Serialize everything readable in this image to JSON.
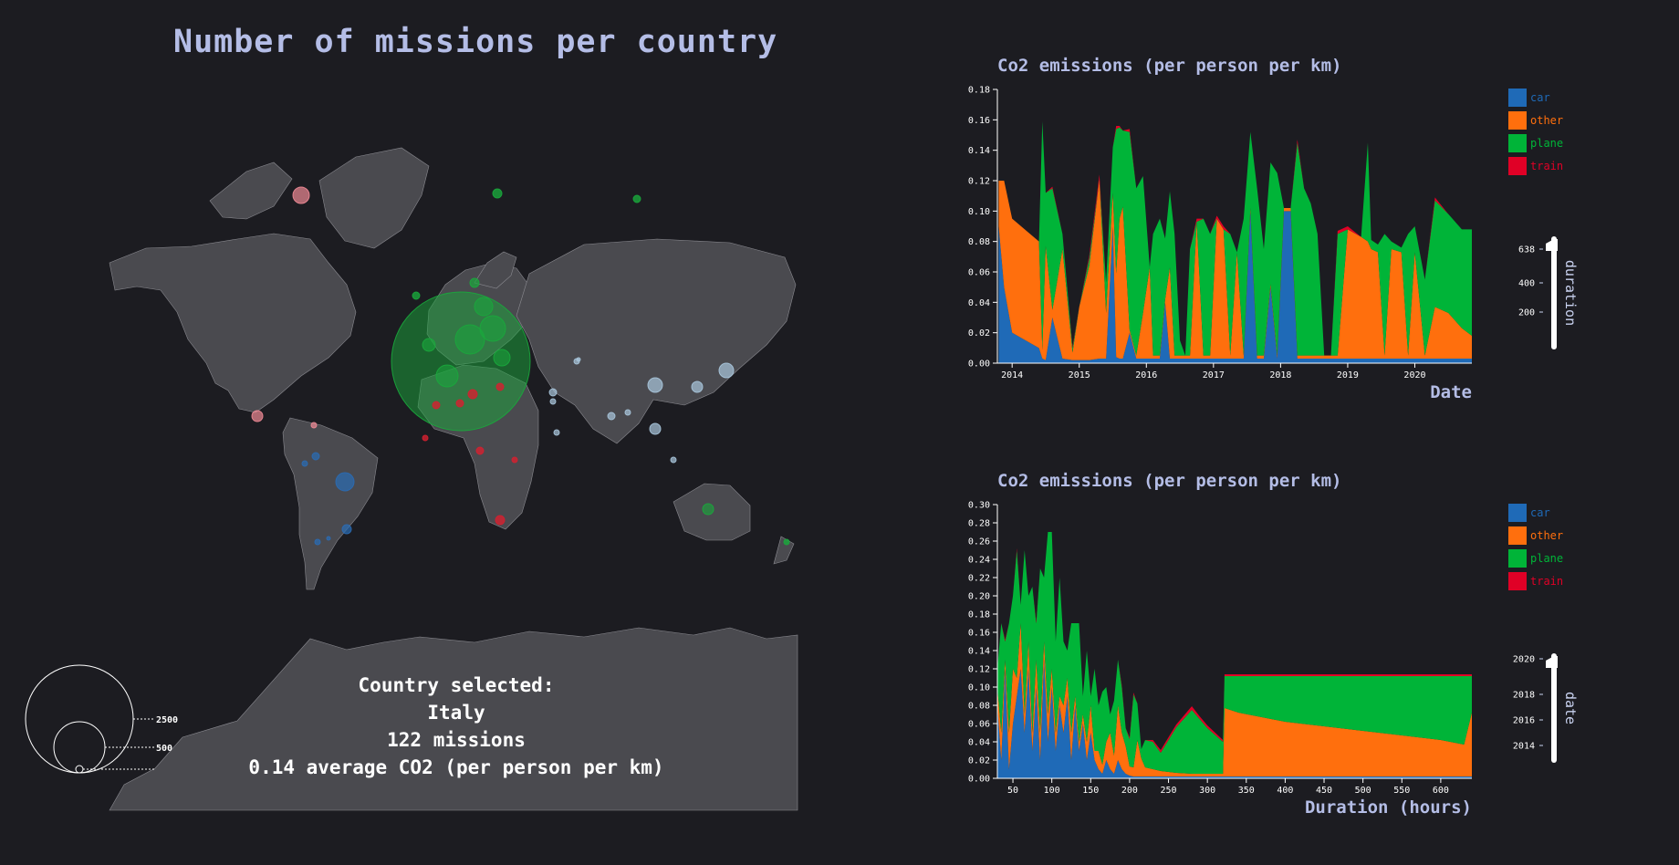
{
  "map": {
    "title": "Number of missions per country",
    "size_legend": [
      "2500",
      "500"
    ],
    "selection": {
      "line1": "Country selected:",
      "country": "Italy",
      "missions": "122 missions",
      "avg": "0.14 average CO2 (per person per km)"
    },
    "colors": {
      "land": "#4a4a4f",
      "border": "#8a8a90",
      "europe": "#1aa83c",
      "asia": "#a9c6dd",
      "africa": "#d42030",
      "americas_n": "#f08a96",
      "americas_s": "#2a6cb5"
    }
  },
  "legend_colors": {
    "car": "#1f6ab7",
    "other": "#ff6f0d",
    "plane": "#00b438",
    "train": "#e00026"
  },
  "chart_data": [
    {
      "type": "area",
      "stacked": true,
      "title": "Co2 emissions (per person per km)",
      "xlabel": "Date",
      "ylabel": "",
      "ylim": [
        0,
        0.18
      ],
      "yticks": [
        "0.00",
        "0.02",
        "0.04",
        "0.06",
        "0.08",
        "0.10",
        "0.12",
        "0.14",
        "0.16",
        "0.18"
      ],
      "xticks": [
        "2014",
        "2015",
        "2016",
        "2017",
        "2018",
        "2019",
        "2020"
      ],
      "xlim": [
        2013.78,
        2020.85
      ],
      "legend": [
        "car",
        "other",
        "plane",
        "train"
      ],
      "legend_position": "right",
      "slider": {
        "label": "duration",
        "ticks": [
          "638",
          "400",
          "200"
        ]
      },
      "x": [
        2013.8,
        2013.88,
        2014.0,
        2014.4,
        2014.45,
        2014.5,
        2014.6,
        2014.75,
        2014.9,
        2015.0,
        2015.15,
        2015.3,
        2015.4,
        2015.5,
        2015.55,
        2015.6,
        2015.65,
        2015.75,
        2015.85,
        2015.95,
        2016.05,
        2016.1,
        2016.2,
        2016.28,
        2016.35,
        2016.42,
        2016.5,
        2016.58,
        2016.65,
        2016.75,
        2016.85,
        2016.95,
        2017.05,
        2017.15,
        2017.25,
        2017.35,
        2017.45,
        2017.55,
        2017.65,
        2017.75,
        2017.85,
        2017.95,
        2018.05,
        2018.15,
        2018.25,
        2018.35,
        2018.45,
        2018.55,
        2018.65,
        2018.75,
        2018.85,
        2019.0,
        2019.2,
        2019.3,
        2019.35,
        2019.45,
        2019.55,
        2019.65,
        2019.8,
        2019.9,
        2020.0,
        2020.15,
        2020.3,
        2020.5,
        2020.7,
        2020.85
      ],
      "series": [
        {
          "name": "car",
          "values": [
            0.09,
            0.05,
            0.02,
            0.01,
            0.003,
            0.002,
            0.03,
            0.003,
            0.002,
            0.002,
            0.002,
            0.003,
            0.003,
            0.09,
            0.004,
            0.003,
            0.003,
            0.02,
            0.003,
            0.003,
            0.003,
            0.003,
            0.003,
            0.04,
            0.003,
            0.003,
            0.003,
            0.003,
            0.003,
            0.003,
            0.003,
            0.003,
            0.003,
            0.003,
            0.003,
            0.003,
            0.003,
            0.1,
            0.003,
            0.003,
            0.05,
            0.003,
            0.1,
            0.1,
            0.003,
            0.003,
            0.003,
            0.003,
            0.003,
            0.003,
            0.003,
            0.003,
            0.003,
            0.003,
            0.003,
            0.003,
            0.003,
            0.003,
            0.003,
            0.003,
            0.003,
            0.003,
            0.003,
            0.003,
            0.003,
            0.003
          ]
        },
        {
          "name": "other",
          "values": [
            0.03,
            0.07,
            0.075,
            0.07,
            0.006,
            0.075,
            0.005,
            0.072,
            0.005,
            0.035,
            0.062,
            0.118,
            0.03,
            0.022,
            0.055,
            0.092,
            0.1,
            0.002,
            0.002,
            0.03,
            0.06,
            0.002,
            0.002,
            0.002,
            0.06,
            0.002,
            0.002,
            0.002,
            0.002,
            0.09,
            0.002,
            0.002,
            0.092,
            0.085,
            0.002,
            0.07,
            0.002,
            0.002,
            0.002,
            0.002,
            0.002,
            0.002,
            0.002,
            0.002,
            0.002,
            0.002,
            0.002,
            0.002,
            0.002,
            0.002,
            0.002,
            0.085,
            0.08,
            0.077,
            0.072,
            0.07,
            0.002,
            0.072,
            0.07,
            0.002,
            0.07,
            0.002,
            0.034,
            0.03,
            0.02,
            0.015
          ]
        },
        {
          "name": "plane",
          "values": [
            0.0,
            0.0,
            0.0,
            0.0,
            0.15,
            0.035,
            0.08,
            0.01,
            0.003,
            0.0,
            0.005,
            0.0,
            0.02,
            0.03,
            0.095,
            0.06,
            0.05,
            0.13,
            0.11,
            0.09,
            0.0,
            0.08,
            0.09,
            0.04,
            0.05,
            0.08,
            0.01,
            0.0,
            0.07,
            0.0,
            0.09,
            0.08,
            0.0,
            0.0,
            0.08,
            0.0,
            0.09,
            0.05,
            0.11,
            0.07,
            0.08,
            0.12,
            0.0,
            0.0,
            0.14,
            0.11,
            0.1,
            0.08,
            0.0,
            0.0,
            0.08,
            0.0,
            0.0,
            0.065,
            0.006,
            0.005,
            0.08,
            0.005,
            0.003,
            0.08,
            0.017,
            0.05,
            0.07,
            0.065,
            0.065,
            0.07
          ]
        },
        {
          "name": "train",
          "values": [
            0.0,
            0.0,
            0.0,
            0.0,
            0.0,
            0.0,
            0.001,
            0.0,
            0.001,
            0.0,
            0.002,
            0.003,
            0.0,
            0.0,
            0.002,
            0.001,
            0.0,
            0.002,
            0.0,
            0.0,
            0.0,
            0.0,
            0.0,
            0.0,
            0.0,
            0.0,
            0.0,
            0.0,
            0.0,
            0.002,
            0.0,
            0.0,
            0.002,
            0.002,
            0.0,
            0.0,
            0.0,
            0.0,
            0.0,
            0.0,
            0.0,
            0.0,
            0.0,
            0.0,
            0.002,
            0.0,
            0.0,
            0.0,
            0.0,
            0.0,
            0.002,
            0.002,
            0.0,
            0.0,
            0.0,
            0.0,
            0.0,
            0.0,
            0.0,
            0.0,
            0.0,
            0.0,
            0.002,
            0.0,
            0.0,
            0.0
          ]
        }
      ]
    },
    {
      "type": "area",
      "stacked": true,
      "title": "Co2 emissions (per person per km)",
      "xlabel": "Duration (hours)",
      "ylabel": "",
      "ylim": [
        0,
        0.3
      ],
      "yticks": [
        "0.00",
        "0.02",
        "0.04",
        "0.06",
        "0.08",
        "0.10",
        "0.12",
        "0.14",
        "0.16",
        "0.18",
        "0.20",
        "0.22",
        "0.24",
        "0.26",
        "0.28",
        "0.30"
      ],
      "xticks": [
        "50",
        "100",
        "150",
        "200",
        "250",
        "300",
        "350",
        "400",
        "450",
        "500",
        "550",
        "600"
      ],
      "xlim": [
        30,
        640
      ],
      "legend": [
        "car",
        "other",
        "plane",
        "train"
      ],
      "legend_position": "right",
      "slider": {
        "label": "date",
        "ticks": [
          "2020",
          "2018",
          "2016",
          "2014"
        ]
      },
      "x": [
        30,
        35,
        40,
        45,
        50,
        55,
        60,
        65,
        70,
        75,
        80,
        85,
        90,
        95,
        100,
        105,
        110,
        115,
        120,
        125,
        130,
        135,
        140,
        145,
        150,
        155,
        160,
        165,
        170,
        175,
        180,
        185,
        190,
        195,
        200,
        205,
        210,
        215,
        220,
        230,
        240,
        260,
        280,
        290,
        300,
        320,
        322,
        340,
        400,
        500,
        600,
        630,
        640
      ],
      "series": [
        {
          "name": "car",
          "values": [
            0.08,
            0.02,
            0.12,
            0.01,
            0.06,
            0.09,
            0.12,
            0.05,
            0.12,
            0.03,
            0.1,
            0.02,
            0.13,
            0.04,
            0.1,
            0.03,
            0.08,
            0.05,
            0.09,
            0.02,
            0.08,
            0.03,
            0.06,
            0.02,
            0.05,
            0.02,
            0.01,
            0.005,
            0.02,
            0.01,
            0.005,
            0.02,
            0.01,
            0.005,
            0.003,
            0.002,
            0.002,
            0.002,
            0.002,
            0.002,
            0.002,
            0.002,
            0.002,
            0.002,
            0.002,
            0.002,
            0.002,
            0.002,
            0.002,
            0.002,
            0.002,
            0.002,
            0.002
          ]
        },
        {
          "name": "other",
          "values": [
            0.02,
            0.03,
            0.01,
            0.04,
            0.06,
            0.02,
            0.05,
            0.02,
            0.03,
            0.02,
            0.03,
            0.03,
            0.02,
            0.03,
            0.02,
            0.02,
            0.01,
            0.03,
            0.02,
            0.03,
            0.01,
            0.01,
            0.01,
            0.02,
            0.03,
            0.01,
            0.02,
            0.01,
            0.02,
            0.04,
            0.02,
            0.06,
            0.04,
            0.03,
            0.01,
            0.01,
            0.04,
            0.02,
            0.01,
            0.008,
            0.006,
            0.004,
            0.003,
            0.003,
            0.003,
            0.003,
            0.075,
            0.07,
            0.06,
            0.05,
            0.04,
            0.035,
            0.07
          ]
        },
        {
          "name": "plane",
          "values": [
            0.02,
            0.12,
            0.02,
            0.12,
            0.08,
            0.14,
            0.02,
            0.18,
            0.05,
            0.16,
            0.04,
            0.18,
            0.07,
            0.2,
            0.15,
            0.1,
            0.13,
            0.07,
            0.03,
            0.12,
            0.08,
            0.13,
            0.02,
            0.1,
            0.01,
            0.09,
            0.05,
            0.08,
            0.06,
            0.02,
            0.06,
            0.05,
            0.05,
            0.02,
            0.03,
            0.08,
            0.04,
            0.01,
            0.03,
            0.03,
            0.02,
            0.05,
            0.07,
            0.06,
            0.05,
            0.035,
            0.035,
            0.04,
            0.05,
            0.06,
            0.07,
            0.075,
            0.04
          ]
        },
        {
          "name": "train",
          "values": [
            0.0,
            0.0,
            0.002,
            0.0,
            0.0,
            0.002,
            0.0,
            0.0,
            0.0,
            0.0,
            0.002,
            0.0,
            0.0,
            0.0,
            0.0,
            0.0,
            0.0,
            0.0,
            0.0,
            0.0,
            0.0,
            0.0,
            0.0,
            0.0,
            0.0,
            0.0,
            0.0,
            0.0,
            0.0,
            0.0,
            0.0,
            0.0,
            0.002,
            0.0,
            0.002,
            0.002,
            0.0,
            0.0,
            0.0,
            0.002,
            0.003,
            0.003,
            0.004,
            0.003,
            0.003,
            0.002,
            0.002,
            0.002,
            0.002,
            0.002,
            0.002,
            0.002,
            0.002
          ]
        }
      ]
    }
  ]
}
